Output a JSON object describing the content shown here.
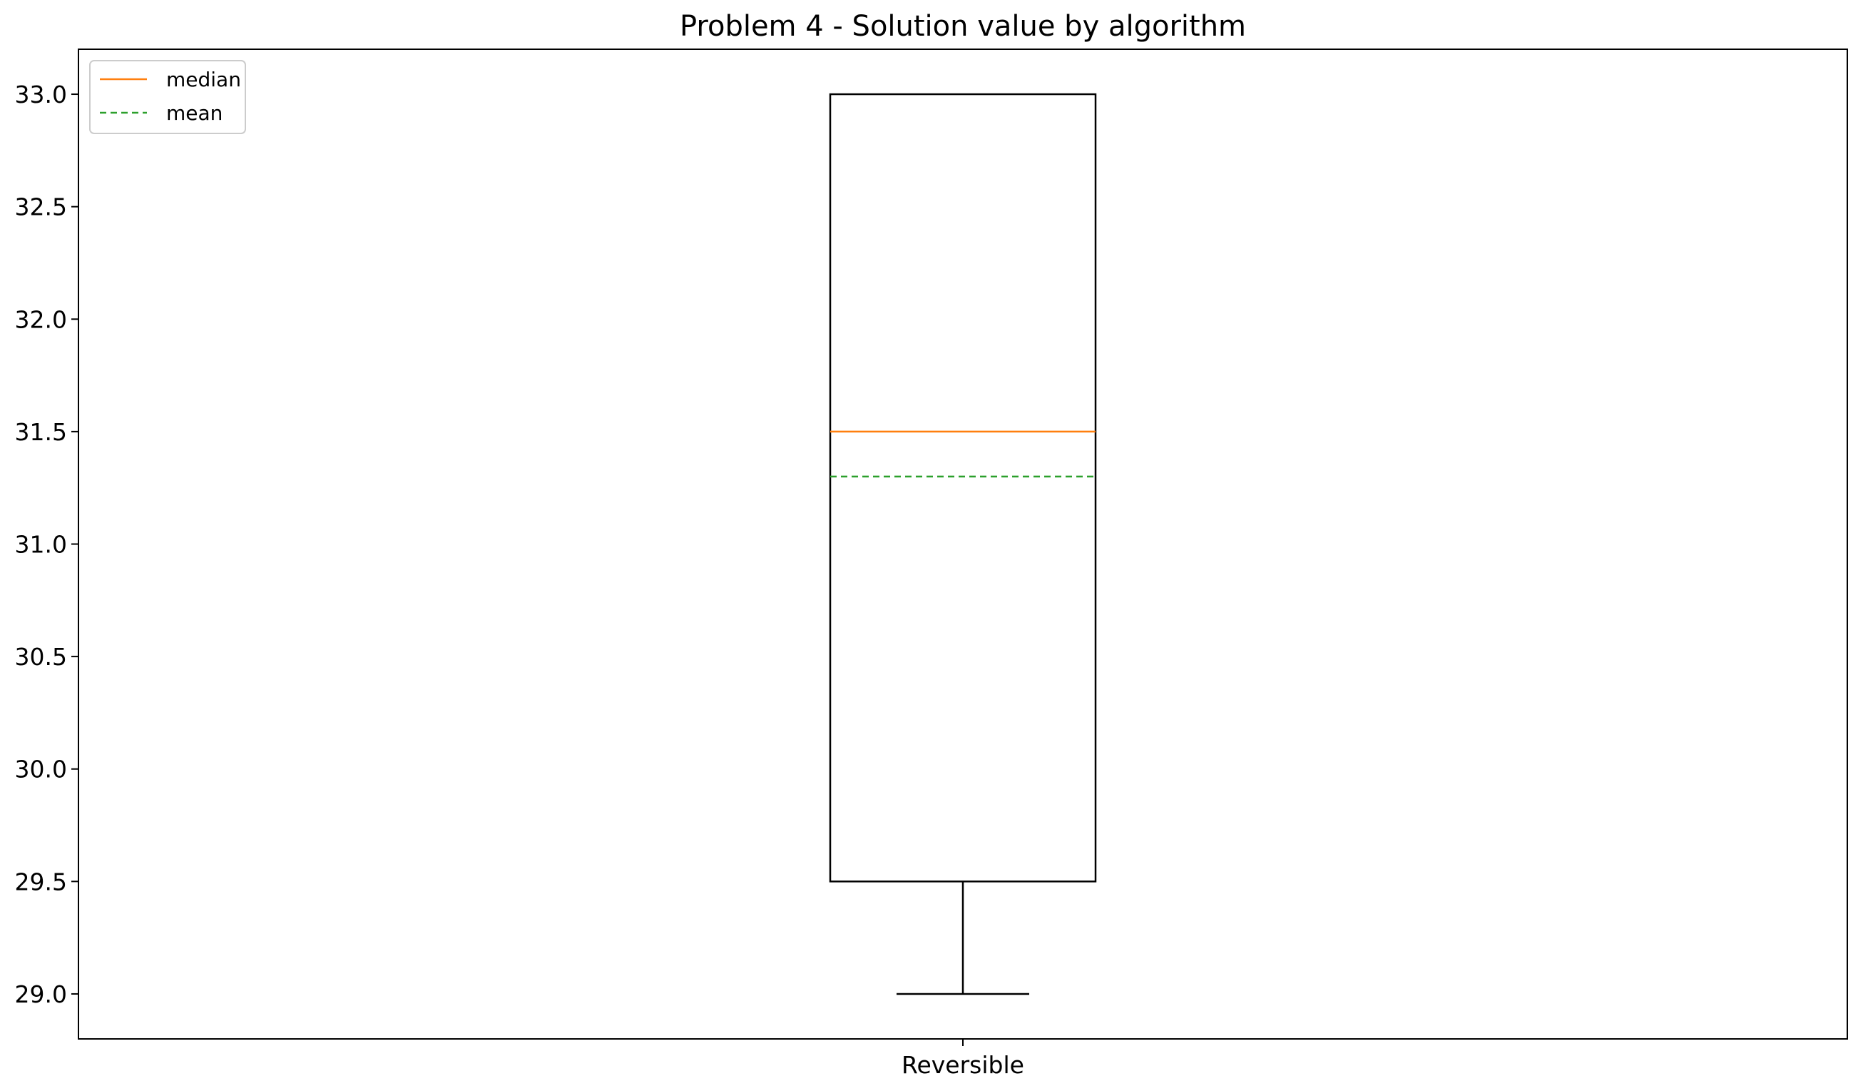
{
  "chart_data": {
    "type": "box",
    "title": "Problem 4 - Solution value by algorithm",
    "xlabel": "",
    "ylabel": "",
    "categories": [
      "Reversible"
    ],
    "boxes": [
      {
        "category": "Reversible",
        "whisker_low": 29.0,
        "q1": 29.5,
        "median": 31.5,
        "mean": 31.3,
        "q3": 33.0,
        "whisker_high": 33.0
      }
    ],
    "ylim": [
      28.8,
      33.2
    ],
    "yticks": [
      29.0,
      29.5,
      30.0,
      30.5,
      31.0,
      31.5,
      32.0,
      32.5,
      33.0
    ],
    "ytick_labels": [
      "29.0",
      "29.5",
      "30.0",
      "30.5",
      "31.0",
      "31.5",
      "32.0",
      "32.5",
      "33.0"
    ],
    "grid": false,
    "legend": {
      "placement": "top-left",
      "entries": [
        {
          "label": "median",
          "color": "#ff7f0e",
          "style": "solid"
        },
        {
          "label": "mean",
          "color": "#2ca02c",
          "style": "dashed"
        }
      ]
    },
    "colors": {
      "box": "#000000",
      "median": "#ff7f0e",
      "mean": "#2ca02c"
    }
  }
}
